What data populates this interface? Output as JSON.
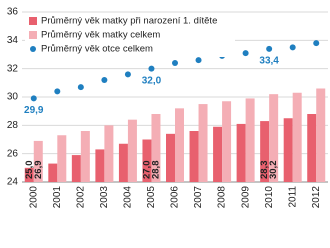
{
  "chart_data": {
    "type": "bar-dot",
    "categories": [
      "2000",
      "2001",
      "2002",
      "2003",
      "2004",
      "2005",
      "2006",
      "2007",
      "2008",
      "2009",
      "2010",
      "2011",
      "2012"
    ],
    "series": [
      {
        "name": "Průměrný věk matky při narození 1. dítěte",
        "color": "#e8606e",
        "kind": "bar",
        "values": [
          25.0,
          25.3,
          25.9,
          26.3,
          26.7,
          27.0,
          27.4,
          27.6,
          27.9,
          28.1,
          28.3,
          28.5,
          28.8
        ],
        "value_labels": [
          "25,0",
          null,
          null,
          null,
          null,
          "27,0",
          null,
          null,
          null,
          null,
          "28,3",
          null,
          null
        ]
      },
      {
        "name": "Průměrný věk matky celkem",
        "color": "#f4aeb5",
        "kind": "bar",
        "values": [
          26.9,
          27.3,
          27.6,
          28.0,
          28.4,
          28.8,
          29.2,
          29.5,
          29.7,
          29.9,
          30.2,
          30.3,
          30.6
        ],
        "value_labels": [
          "26,9",
          null,
          null,
          null,
          null,
          "28,8",
          null,
          null,
          null,
          null,
          "30,2",
          null,
          null
        ]
      },
      {
        "name": "Průměrný věk otce celkem",
        "color": "#1f7fc0",
        "kind": "dot",
        "values": [
          29.9,
          30.4,
          30.7,
          31.2,
          31.6,
          32.0,
          32.4,
          32.6,
          32.9,
          33.1,
          33.4,
          33.5,
          33.8
        ],
        "value_labels": [
          "29,9",
          null,
          null,
          null,
          null,
          "32,0",
          null,
          null,
          null,
          null,
          "33,4",
          null,
          null
        ]
      }
    ],
    "ylim": [
      24,
      36
    ],
    "yticks": [
      24,
      26,
      28,
      30,
      32,
      34,
      36
    ],
    "grid": true,
    "legend": "upper left"
  }
}
